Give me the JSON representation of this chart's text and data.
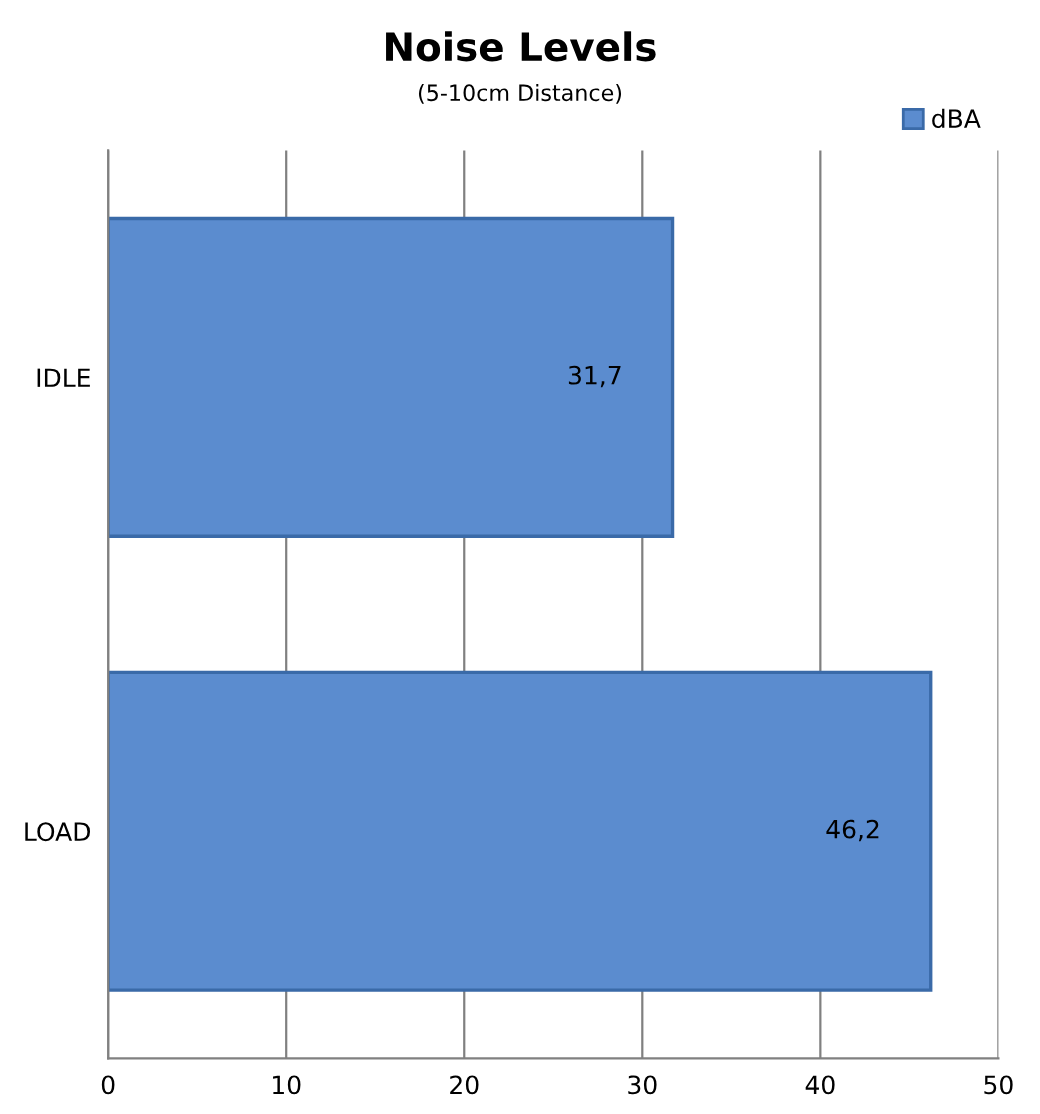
{
  "chart_data": {
    "type": "bar",
    "orientation": "horizontal",
    "title": "Noise Levels",
    "subtitle": "(5-10cm Distance)",
    "categories": [
      "IDLE",
      "LOAD"
    ],
    "series": [
      {
        "name": "dBA",
        "color": "#5b8ccf",
        "values": [
          31.7,
          46.2
        ],
        "value_labels": [
          "31,7",
          "46,2"
        ]
      }
    ],
    "xlim": [
      0,
      50
    ],
    "xticks": [
      0,
      10,
      20,
      30,
      40,
      50
    ],
    "grid": "x",
    "legend": "top right"
  }
}
